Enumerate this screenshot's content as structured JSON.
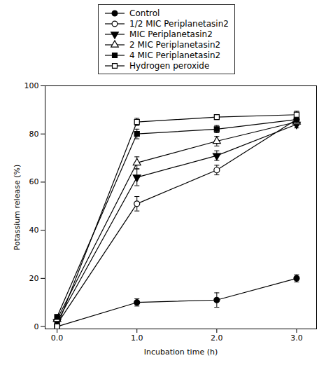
{
  "chart_data": {
    "type": "line",
    "x": [
      0,
      1,
      2,
      3
    ],
    "series": [
      {
        "name": "Control",
        "color": "black",
        "marker": "circle",
        "line_style": "solid",
        "values": [
          0,
          10,
          11,
          20
        ],
        "errors": [
          0.3,
          1.5,
          3.0,
          1.5
        ]
      },
      {
        "name": "1/2 MIC Periplanetasin2",
        "color": "black",
        "marker": "circle-open",
        "line_style": "solid",
        "values": [
          1,
          51,
          65,
          86
        ],
        "errors": [
          0.3,
          3.0,
          2.0,
          1.5
        ]
      },
      {
        "name": "MIC Periplanetasin2",
        "color": "black",
        "marker": "triangle-down",
        "line_style": "solid",
        "values": [
          2,
          62,
          71,
          84
        ],
        "errors": [
          0.3,
          3.5,
          2.0,
          1.5
        ]
      },
      {
        "name": "2 MIC Periplanetasin2",
        "color": "black",
        "marker": "triangle-up-open",
        "line_style": "solid",
        "values": [
          3,
          68,
          77,
          85
        ],
        "errors": [
          0.3,
          2.5,
          2.0,
          1.5
        ]
      },
      {
        "name": "4 MIC Periplanetasin2",
        "color": "black",
        "marker": "square",
        "line_style": "solid",
        "values": [
          4,
          80,
          82,
          86
        ],
        "errors": [
          0.3,
          2.0,
          1.5,
          1.5
        ]
      },
      {
        "name": "Hydrogen peroxide",
        "color": "black",
        "marker": "square-open",
        "line_style": "solid",
        "values": [
          0,
          85,
          87,
          88
        ],
        "errors": [
          0.3,
          1.5,
          1.0,
          1.5
        ]
      }
    ],
    "xlabel": "Incubation time (h)",
    "ylabel": "Potassium release (%)",
    "xlim": [
      -0.15,
      3.25
    ],
    "ylim": [
      -1,
      100
    ],
    "xticks": [
      0,
      1,
      2,
      3
    ],
    "yticks": [
      0,
      20,
      40,
      60,
      80,
      100
    ],
    "legend": "top",
    "grid": false
  }
}
